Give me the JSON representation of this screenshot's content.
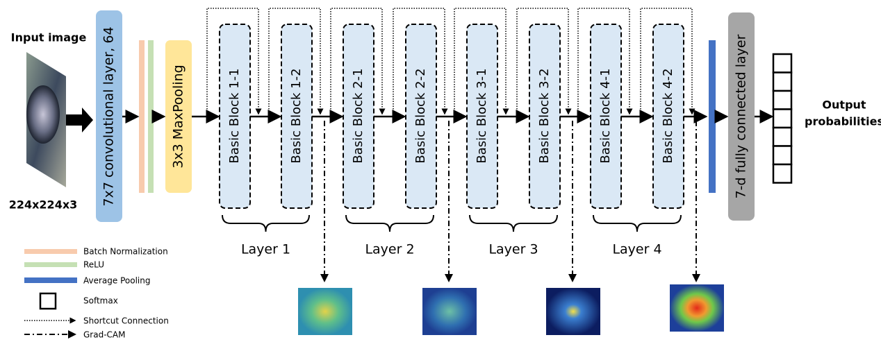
{
  "input": {
    "title": "Input image",
    "size": "224x224x3"
  },
  "conv": "7x7 convolutional layer, 64",
  "maxpool": "3x3 MaxPooling",
  "blocks": [
    "Basic Block 1-1",
    "Basic Block 1-2",
    "Basic Block 2-1",
    "Basic Block 2-2",
    "Basic Block 3-1",
    "Basic Block 3-2",
    "Basic Block 4-1",
    "Basic Block 4-2"
  ],
  "layers": [
    "Layer 1",
    "Layer 2",
    "Layer 3",
    "Layer 4"
  ],
  "fc": "7-d fully connected layer",
  "output": [
    "Output",
    "probabilities"
  ],
  "legend": [
    "Batch Normalization",
    "ReLU",
    "Average Pooling",
    "Softmax",
    "Shortcut Connection",
    "Grad-CAM"
  ]
}
